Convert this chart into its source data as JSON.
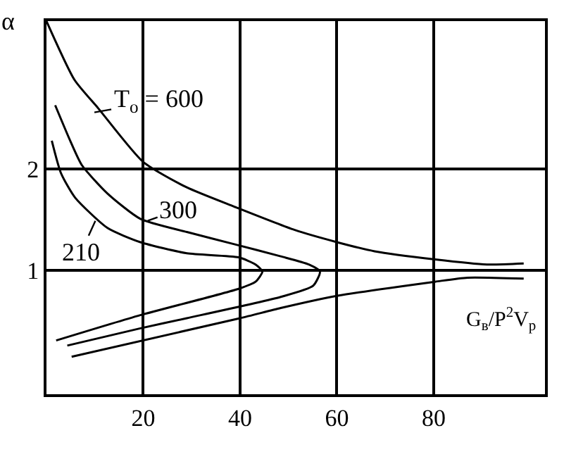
{
  "chart_data": {
    "type": "line",
    "xlabel": "G$_{в}$/P$^{2}$V$_{p}$",
    "ylabel": "α",
    "xlim": [
      0,
      103
    ],
    "ylim": [
      -0.22,
      3.46
    ],
    "xticks": [
      20,
      40,
      60,
      80
    ],
    "yticks": [
      1,
      2
    ],
    "grid": true,
    "marker": "none",
    "line_style": "solid",
    "series": [
      {
        "color": "#000000",
        "x": [
          0,
          5.8,
          10.7,
          20,
          29,
          38.8,
          51.3,
          60,
          67.8,
          80.3,
          91,
          98.6,
          null,
          5.2,
          40,
          48.4,
          60,
          80.3,
          87,
          98.6
        ],
        "values": [
          3.46,
          2.88,
          2.6,
          2.07,
          1.82,
          1.63,
          1.4,
          1.28,
          1.19,
          1.11,
          1.06,
          1.07,
          null,
          0.15,
          0.53,
          0.63,
          0.75,
          0.89,
          0.93,
          0.92
        ]
      },
      {
        "color": "#000000",
        "x": [
          1.8,
          4.9,
          7.3,
          12.6,
          19.4,
          29,
          38.8,
          48.4,
          54.2,
          56.5,
          55.1,
          48.4,
          29,
          19.4,
          4.3
        ],
        "values": [
          2.63,
          2.28,
          2.04,
          1.76,
          1.51,
          1.38,
          1.26,
          1.14,
          1.06,
          0.99,
          0.85,
          0.74,
          0.53,
          0.43,
          0.26
        ]
      },
      {
        "color": "#000000",
        "x": [
          1.1,
          3,
          5.9,
          12.6,
          19.4,
          29,
          39.7,
          43.2,
          44.6,
          43.2,
          39.7,
          19.4,
          2
        ],
        "values": [
          2.28,
          1.96,
          1.72,
          1.42,
          1.28,
          1.17,
          1.13,
          1.06,
          0.99,
          0.89,
          0.82,
          0.56,
          0.31
        ]
      }
    ],
    "annotations": [
      {
        "text": "T$_{o}$ = 600",
        "x": 9.9,
        "y": 2.56
      },
      {
        "text": "300",
        "x": 20.9,
        "y": 1.49
      },
      {
        "text": "210",
        "x": 10.1,
        "y": 1.49
      }
    ]
  }
}
